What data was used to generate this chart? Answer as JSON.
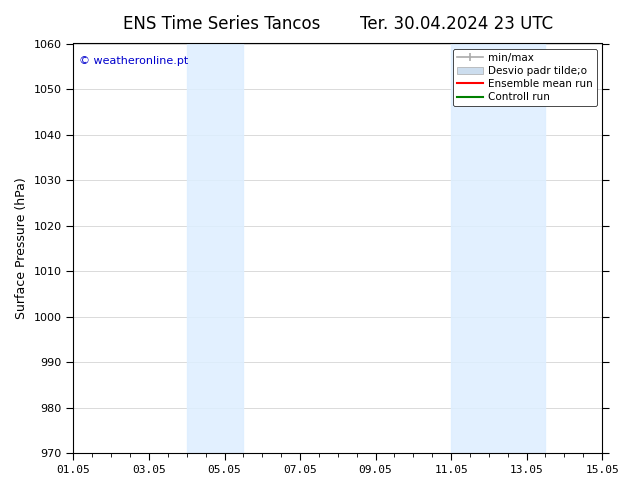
{
  "title_left": "ENS Time Series Tancos",
  "title_right": "Ter. 30.04.2024 23 UTC",
  "ylabel": "Surface Pressure (hPa)",
  "ylim": [
    970,
    1060
  ],
  "yticks": [
    970,
    980,
    990,
    1000,
    1010,
    1020,
    1030,
    1040,
    1050,
    1060
  ],
  "xlim_num": [
    0,
    14
  ],
  "xtick_labels": [
    "01.05",
    "03.05",
    "05.05",
    "07.05",
    "09.05",
    "11.05",
    "13.05",
    "15.05"
  ],
  "xtick_positions": [
    0,
    2,
    4,
    6,
    8,
    10,
    12,
    14
  ],
  "watermark": "© weatheronline.pt",
  "watermark_color": "#0000cc",
  "shaded_bands": [
    {
      "xmin": 3.0,
      "xmax": 4.5
    },
    {
      "xmin": 10.0,
      "xmax": 12.5
    }
  ],
  "shade_color": "#ddeeff",
  "shade_alpha": 0.85,
  "legend_entries": [
    {
      "label": "min/max",
      "color": "#aaaaaa",
      "lw": 1.2,
      "ls": "-"
    },
    {
      "label": "Desvio padr tilde;o",
      "color": "#ccddee",
      "lw": 6,
      "ls": "-"
    },
    {
      "label": "Ensemble mean run",
      "color": "red",
      "lw": 1.5,
      "ls": "-"
    },
    {
      "label": "Controll run",
      "color": "green",
      "lw": 1.5,
      "ls": "-"
    }
  ],
  "bg_color": "#ffffff",
  "grid_color": "#cccccc",
  "title_fontsize": 12,
  "tick_fontsize": 8,
  "ylabel_fontsize": 9
}
